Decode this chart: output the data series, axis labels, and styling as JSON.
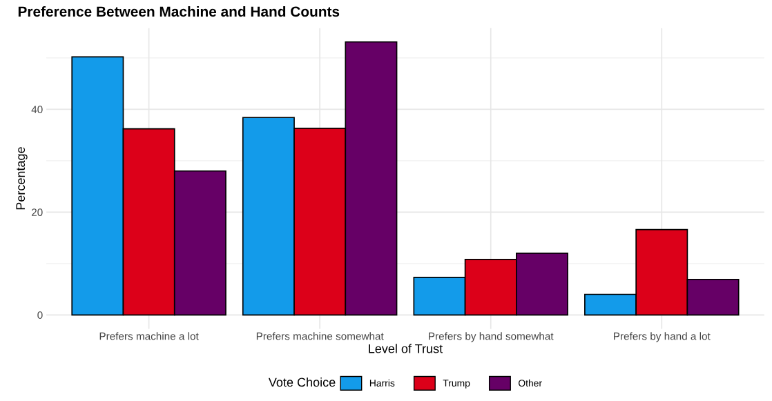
{
  "chart_data": {
    "type": "bar",
    "title": "Preference Between Machine and Hand Counts",
    "xlabel": "Level of Trust",
    "ylabel": "Percentage",
    "legend_title": "Vote Choice",
    "categories": [
      "Prefers machine a lot",
      "Prefers machine somewhat",
      "Prefers by hand somewhat",
      "Prefers by hand a lot"
    ],
    "series": [
      {
        "name": "Harris",
        "color": "#139bea",
        "values": [
          50.2,
          38.4,
          7.3,
          4.0
        ]
      },
      {
        "name": "Trump",
        "color": "#dc0019",
        "values": [
          36.2,
          36.3,
          10.8,
          16.6
        ]
      },
      {
        "name": "Other",
        "color": "#660066",
        "values": [
          28.0,
          53.1,
          12.0,
          6.9
        ]
      }
    ],
    "ylim": [
      -2.7,
      55.8
    ],
    "yticks": [
      0,
      20,
      40
    ],
    "grid": true,
    "legend": "bottom"
  }
}
